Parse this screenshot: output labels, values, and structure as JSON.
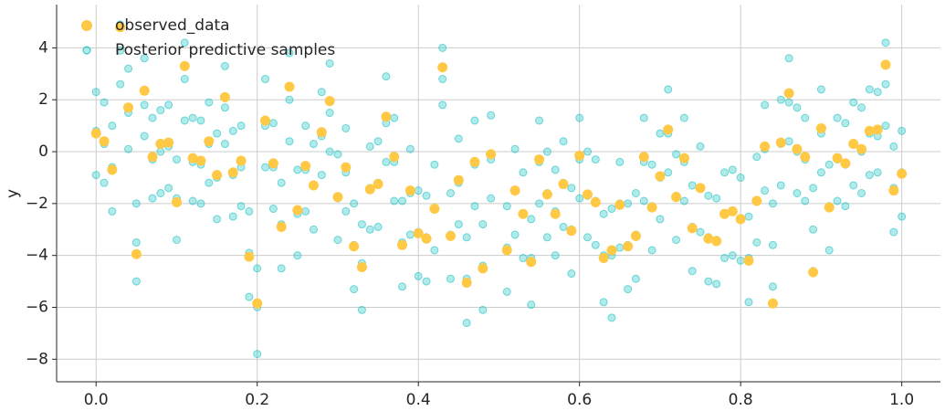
{
  "chart_data": {
    "type": "scatter",
    "ylabel": "y",
    "legend": "upper left",
    "grid": true,
    "xlim": [
      -0.049,
      1.048
    ],
    "ylim": [
      -8.87,
      5.67
    ],
    "xticks": [
      {
        "value": 0,
        "label": "0.0"
      },
      0.2,
      0.4,
      0.6,
      0.8,
      {
        "value": 1,
        "label": "1.0"
      }
    ],
    "yticks": [
      {
        "value": -8,
        "label": "−8"
      },
      {
        "value": -6,
        "label": "−6"
      },
      {
        "value": -4,
        "label": "−4"
      },
      {
        "value": -2,
        "label": "−2"
      },
      0,
      2,
      4
    ],
    "x": [
      0,
      0.01,
      0.02,
      0.03,
      0.04,
      0.05,
      0.06,
      0.07,
      0.08,
      0.09,
      0.1,
      0.11,
      0.12,
      0.13,
      0.14,
      0.15,
      0.16,
      0.17,
      0.18,
      0.19,
      0.2,
      0.21,
      0.22,
      0.23,
      0.24,
      0.25,
      0.26,
      0.27,
      0.28,
      0.29,
      0.3,
      0.31,
      0.32,
      0.33,
      0.34,
      0.35,
      0.36,
      0.37,
      0.38,
      0.39,
      0.4,
      0.41,
      0.42,
      0.43,
      0.44,
      0.45,
      0.46,
      0.47,
      0.48,
      0.49,
      0.51,
      0.52,
      0.53,
      0.54,
      0.55,
      0.56,
      0.57,
      0.58,
      0.59,
      0.6,
      0.61,
      0.62,
      0.63,
      0.64,
      0.65,
      0.66,
      0.67,
      0.68,
      0.69,
      0.7,
      0.71,
      0.72,
      0.73,
      0.74,
      0.75,
      0.76,
      0.77,
      0.78,
      0.79,
      0.8,
      0.81,
      0.82,
      0.83,
      0.84,
      0.85,
      0.86,
      0.87,
      0.88,
      0.89,
      0.9,
      0.91,
      0.92,
      0.93,
      0.94,
      0.95,
      0.96,
      0.97,
      0.98,
      0.99,
      1
    ],
    "series": [
      {
        "name": "observed_data",
        "color": "#ffc845",
        "values": [
          0.7,
          0.4,
          -0.7,
          4.8,
          1.7,
          -3.95,
          2.35,
          -0.2,
          0.3,
          0.35,
          -1.95,
          3.3,
          -0.25,
          -0.35,
          0.4,
          -0.9,
          2.1,
          -0.8,
          -0.35,
          -4.05,
          -5.85,
          1.2,
          -0.45,
          -2.9,
          2.5,
          -2.25,
          -0.55,
          -1.3,
          0.75,
          1.95,
          -1.75,
          -0.6,
          -3.65,
          -4.45,
          -1.45,
          -1.25,
          1.35,
          -0.2,
          -3.6,
          -1.5,
          -3.15,
          -3.35,
          -2.2,
          3.25,
          -3.25,
          -1.1,
          -5.05,
          -0.4,
          -4.5,
          -0.1,
          -3.8,
          -1.5,
          -2.4,
          -4.25,
          -0.3,
          -1.65,
          -2.4,
          -1.25,
          -3.05,
          -0.15,
          -1.65,
          -1.95,
          -4.1,
          -3.8,
          -2.05,
          -3.65,
          -3.25,
          -0.2,
          -2.15,
          -0.95,
          0.85,
          -1.75,
          -0.25,
          -2.95,
          -1.4,
          -3.35,
          -3.45,
          -2.4,
          -2.3,
          -2.6,
          -4.2,
          -1.9,
          0.2,
          -5.85,
          0.35,
          2.25,
          0.1,
          -0.2,
          -4.65,
          0.9,
          -2.15,
          -0.25,
          -0.45,
          0.3,
          0.1,
          0.8,
          0.85,
          3.35,
          -1.5,
          -0.85
        ]
      },
      {
        "name": "Posterior predictive samples",
        "color": "#1fc2c2",
        "values": [
          [
            -0.9,
            0.8,
            2.3
          ],
          [
            -1.2,
            0.3,
            1.9
          ],
          [
            -2.3,
            -0.6,
            1.0
          ],
          [
            2.6,
            3.9,
            4.9
          ],
          [
            0.1,
            1.5,
            3.2
          ],
          [
            -5.0,
            -3.5,
            -2.0
          ],
          [
            0.6,
            1.8,
            3.6
          ],
          [
            -1.8,
            -0.3,
            1.3
          ],
          [
            -1.6,
            0.0,
            1.6
          ],
          [
            -1.4,
            0.2,
            1.8
          ],
          [
            -3.4,
            -1.8,
            -0.3
          ],
          [
            1.2,
            2.8,
            4.2
          ],
          [
            -1.9,
            -0.4,
            1.3
          ],
          [
            -2.0,
            -0.5,
            1.2
          ],
          [
            -1.2,
            0.3,
            1.9
          ],
          [
            -2.6,
            -1.0,
            0.7
          ],
          [
            0.3,
            1.7,
            3.3
          ],
          [
            -2.5,
            -0.9,
            0.8
          ],
          [
            -2.1,
            -0.6,
            1.0
          ],
          [
            -5.6,
            -3.9,
            -2.3
          ],
          [
            -7.8,
            -6.0,
            -4.5
          ],
          [
            -0.6,
            1.0,
            2.8
          ],
          [
            -2.2,
            -0.6,
            1.1
          ],
          [
            -4.5,
            -2.8,
            -1.2
          ],
          [
            0.4,
            2.0,
            3.8
          ],
          [
            -4.0,
            -2.4,
            -0.7
          ],
          [
            -2.3,
            -0.7,
            1.0
          ],
          [
            -3.0,
            -1.3,
            0.3
          ],
          [
            -0.9,
            0.6,
            2.3
          ],
          [
            0.0,
            1.5,
            3.4
          ],
          [
            -3.4,
            -1.8,
            -0.1
          ],
          [
            -2.3,
            -0.8,
            0.9
          ],
          [
            -5.3,
            -3.6,
            -2.0
          ],
          [
            -6.1,
            -4.3,
            -2.8
          ],
          [
            -3.0,
            -1.4,
            0.2
          ],
          [
            -2.9,
            -1.2,
            0.4
          ],
          [
            -0.4,
            1.1,
            2.9
          ],
          [
            -1.9,
            -0.4,
            1.3
          ],
          [
            -5.2,
            -3.5,
            -1.9
          ],
          [
            -3.2,
            -1.6,
            0.1
          ],
          [
            -4.8,
            -3.1,
            -1.5
          ],
          [
            -5.0,
            -3.3,
            -1.7
          ],
          [
            -3.8,
            -2.2,
            -0.5
          ],
          [
            1.8,
            2.8,
            4.0
          ],
          [
            -4.9,
            -3.2,
            -1.6
          ],
          [
            -2.8,
            -1.2,
            0.5
          ],
          [
            -6.6,
            -4.9,
            -3.3
          ],
          [
            -2.1,
            -0.5,
            1.2
          ],
          [
            -6.1,
            -4.4,
            -2.8
          ],
          [
            -1.8,
            -0.3,
            1.4
          ],
          [
            -5.4,
            -3.7,
            -2.1
          ],
          [
            -3.2,
            -1.5,
            0.1
          ],
          [
            -4.1,
            -2.4,
            -0.8
          ],
          [
            -5.9,
            -4.1,
            -2.6
          ],
          [
            -2.0,
            -0.4,
            1.2
          ],
          [
            -3.3,
            -1.6,
            0.0
          ],
          [
            -4.0,
            -2.3,
            -0.7
          ],
          [
            -2.9,
            -1.2,
            0.4
          ],
          [
            -4.7,
            -3.0,
            -1.4
          ],
          [
            -1.8,
            -0.3,
            1.3
          ],
          [
            -3.3,
            -1.7,
            0.0
          ],
          [
            -3.6,
            -1.9,
            -0.3
          ],
          [
            -5.8,
            -4.0,
            -2.4
          ],
          [
            -6.4,
            -4.0,
            -2.2
          ],
          [
            -3.7,
            -2.0,
            -0.4
          ],
          [
            -5.3,
            -3.6,
            -2.0
          ],
          [
            -4.9,
            -3.2,
            -1.6
          ],
          [
            -1.9,
            -0.4,
            1.3
          ],
          [
            -3.8,
            -2.1,
            -0.5
          ],
          [
            -2.6,
            -1.0,
            0.7
          ],
          [
            -0.8,
            0.7,
            2.4
          ],
          [
            -3.4,
            -1.7,
            -0.1
          ],
          [
            -1.9,
            -0.4,
            1.3
          ],
          [
            -4.6,
            -2.9,
            -1.3
          ],
          [
            -3.1,
            -1.4,
            0.2
          ],
          [
            -5.0,
            -3.3,
            -1.7
          ],
          [
            -5.1,
            -3.4,
            -1.8
          ],
          [
            -4.1,
            -2.4,
            -0.8
          ],
          [
            -4.0,
            -2.3,
            -0.7
          ],
          [
            -4.2,
            -2.6,
            -1.0
          ],
          [
            -5.8,
            -4.1,
            -2.5
          ],
          [
            -3.5,
            -1.9,
            -0.2
          ],
          [
            -1.5,
            0.1,
            1.8
          ],
          [
            -5.2,
            -3.6,
            -2.0
          ],
          [
            -1.3,
            0.3,
            2.0
          ],
          [
            0.4,
            1.9,
            3.6
          ],
          [
            -1.6,
            0.0,
            1.7
          ],
          [
            -1.9,
            -0.3,
            1.3
          ],
          [
            -4.6,
            -3.0,
            -1.4
          ],
          [
            -0.8,
            0.7,
            2.4
          ],
          [
            -3.8,
            -2.1,
            -0.5
          ],
          [
            -1.9,
            -0.3,
            1.3
          ],
          [
            -2.1,
            -0.5,
            1.1
          ],
          [
            -1.3,
            0.3,
            1.9
          ],
          [
            -1.6,
            0.0,
            1.7
          ],
          [
            -0.9,
            0.7,
            2.4
          ],
          [
            -0.8,
            0.6,
            2.3
          ],
          [
            1.0,
            2.6,
            4.2
          ],
          [
            -3.1,
            -1.4,
            0.2
          ],
          [
            -2.5,
            -0.8,
            0.8
          ]
        ]
      }
    ]
  }
}
